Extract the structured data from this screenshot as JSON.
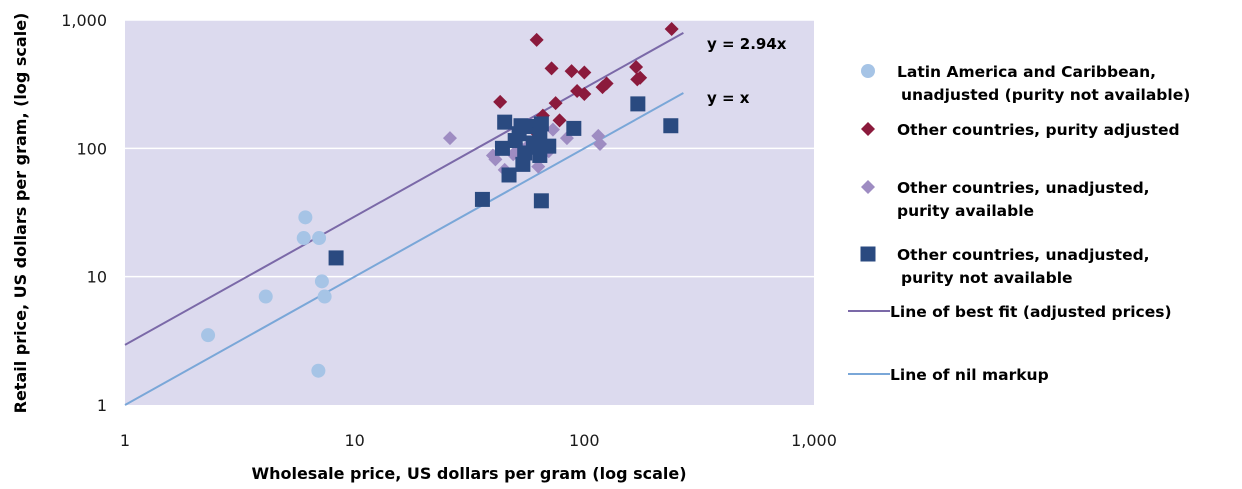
{
  "chart_data": {
    "type": "scatter",
    "xlabel": "Wholesale price, US dollars per gram (log scale)",
    "ylabel": "Retail price, US dollars per gram, (log scale)",
    "xscale": "log",
    "yscale": "log",
    "xlim": [
      1,
      1000
    ],
    "ylim": [
      1,
      1000
    ],
    "x_ticks": [
      "1",
      "10",
      "100",
      "1,000"
    ],
    "y_ticks": [
      "1",
      "10",
      "100",
      "1,000"
    ],
    "grid": "horizontal",
    "legend_position": "right",
    "series": [
      {
        "name": "Latin America and Caribbean, unadjusted (purity not available)",
        "marker": "circle",
        "color": "#a6c4e6",
        "points": [
          [
            2.3,
            3.5
          ],
          [
            4.1,
            7.0
          ],
          [
            6.0,
            20.0
          ],
          [
            6.1,
            29.0
          ],
          [
            7.0,
            20.0
          ],
          [
            7.2,
            9.2
          ],
          [
            7.4,
            7.0
          ],
          [
            6.95,
            1.85
          ]
        ]
      },
      {
        "name": "Other countries, purity adjusted",
        "marker": "diamond",
        "color": "#8b1a3c",
        "points": [
          [
            43,
            230
          ],
          [
            60,
            140
          ],
          [
            62,
            700
          ],
          [
            66,
            180
          ],
          [
            72,
            420
          ],
          [
            75,
            225
          ],
          [
            78,
            165
          ],
          [
            88,
            400
          ],
          [
            93,
            280
          ],
          [
            100,
            390
          ],
          [
            100,
            265
          ],
          [
            120,
            300
          ],
          [
            125,
            320
          ],
          [
            168,
            430
          ],
          [
            170,
            345
          ],
          [
            175,
            355
          ],
          [
            240,
            850
          ]
        ]
      },
      {
        "name": "Other countries, unadjusted, purity available",
        "marker": "diamond",
        "color": "#9e8cc2",
        "points": [
          [
            26,
            120
          ],
          [
            40,
            88
          ],
          [
            41,
            82
          ],
          [
            45,
            68
          ],
          [
            49,
            90
          ],
          [
            53,
            100
          ],
          [
            57,
            105
          ],
          [
            63,
            72
          ],
          [
            70,
            95
          ],
          [
            73,
            140
          ],
          [
            84,
            120
          ],
          [
            115,
            125
          ],
          [
            117,
            108
          ]
        ]
      },
      {
        "name": "Other countries, unadjusted, purity not available",
        "marker": "square",
        "color": "#2a4a80",
        "points": [
          [
            8.3,
            14
          ],
          [
            36,
            40
          ],
          [
            44,
            100
          ],
          [
            45,
            160
          ],
          [
            47,
            62
          ],
          [
            50,
            115
          ],
          [
            52,
            130
          ],
          [
            53,
            150
          ],
          [
            54,
            75
          ],
          [
            55,
            92
          ],
          [
            57,
            148
          ],
          [
            60,
            110
          ],
          [
            63,
            102
          ],
          [
            64,
            128
          ],
          [
            64,
            88
          ],
          [
            65,
            155
          ],
          [
            65,
            39
          ],
          [
            70,
            104
          ],
          [
            90,
            143
          ],
          [
            171,
            222
          ],
          [
            238,
            150
          ]
        ]
      }
    ],
    "lines": [
      {
        "name": "Line of best fit (adjusted prices)",
        "label": "y = 2.94x",
        "slope": 2.94,
        "color": "#7b69a8",
        "x_range": [
          1,
          270
        ]
      },
      {
        "name": "Line of nil markup",
        "label": "y = x",
        "slope": 1,
        "color": "#7aa7d8",
        "x_range": [
          1,
          270
        ]
      }
    ]
  }
}
